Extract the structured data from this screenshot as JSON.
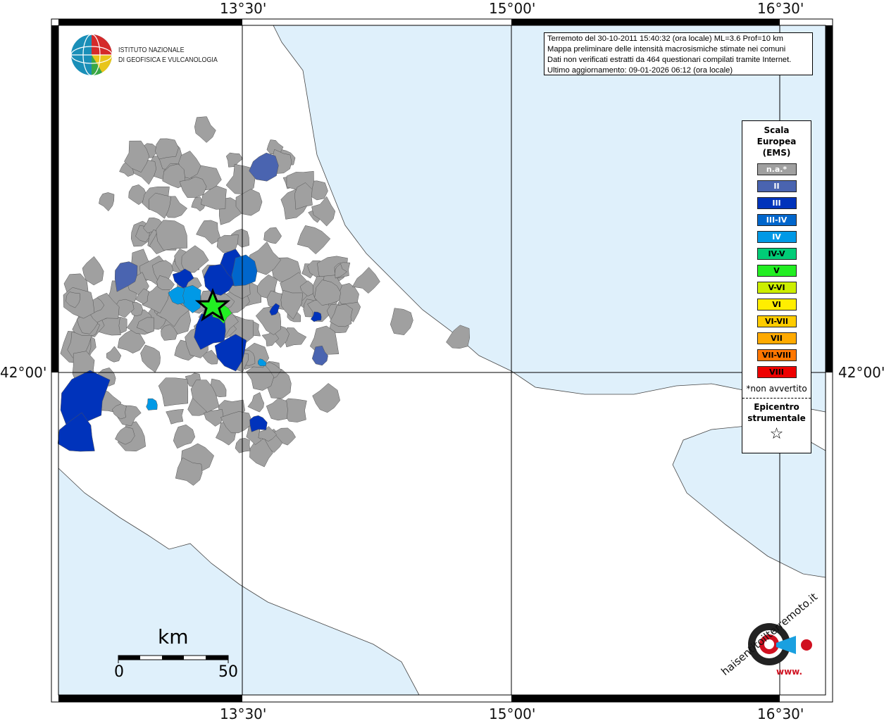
{
  "header": {
    "logo_text_line1": "ISTITUTO NAZIONALE",
    "logo_text_line2": "DI GEOFISICA E VULCANOLOGIA"
  },
  "coordinates": {
    "top": [
      "13°30'",
      "15°00'",
      "16°30'"
    ],
    "bottom": [
      "13°30'",
      "15°00'",
      "16°30'"
    ],
    "left": "42°00'",
    "right": "42°00'"
  },
  "info": {
    "lines": [
      "Terremoto del 30-10-2011 15:40:32 (ora locale) ML=3.6 Prof=10 km",
      "Mappa preliminare delle intensità macrosismiche stimate nei comuni",
      "Dati non verificati estratti da 464 questionari compilati tramite Internet.",
      "Ultimo aggiornamento: 09-01-2026 06:12 (ora locale)"
    ]
  },
  "legend": {
    "title_lines": [
      "Scala",
      "Europea",
      "(EMS)"
    ],
    "items": [
      {
        "label": "n.a.*",
        "color": "#a0a0a0",
        "text_color": "#ffffff"
      },
      {
        "label": "II",
        "color": "#4a64b0",
        "text_color": "#ffffff"
      },
      {
        "label": "III",
        "color": "#0033bb",
        "text_color": "#ffffff"
      },
      {
        "label": "III-IV",
        "color": "#0066cc",
        "text_color": "#ffffff"
      },
      {
        "label": "IV",
        "color": "#0099e6",
        "text_color": "#ffffff"
      },
      {
        "label": "IV-V",
        "color": "#00cc77",
        "text_color": "#000000"
      },
      {
        "label": "V",
        "color": "#22ee22",
        "text_color": "#000000"
      },
      {
        "label": "V-VI",
        "color": "#ccee00",
        "text_color": "#000000"
      },
      {
        "label": "VI",
        "color": "#ffee00",
        "text_color": "#000000"
      },
      {
        "label": "VI-VII",
        "color": "#ffcc00",
        "text_color": "#000000"
      },
      {
        "label": "VII",
        "color": "#ffaa00",
        "text_color": "#000000"
      },
      {
        "label": "VII-VIII",
        "color": "#ff7700",
        "text_color": "#000000"
      },
      {
        "label": "VIII",
        "color": "#ee0000",
        "text_color": "#000000"
      }
    ],
    "note": "*non avvertito",
    "epicenter_lines": [
      "Epicentro",
      "strumentale"
    ]
  },
  "scale_bar": {
    "unit": "km",
    "min": "0",
    "max": "50"
  },
  "footer_logo": {
    "text": "haisentitoilterremoto.it",
    "prefix": "www."
  },
  "colors": {
    "sea": "#dff0fb",
    "na": "#a0a0a0",
    "ii": "#4a64b0",
    "iii": "#0033bb",
    "iiiiv": "#0066cc",
    "iv": "#0099e6",
    "v": "#22ee22"
  }
}
